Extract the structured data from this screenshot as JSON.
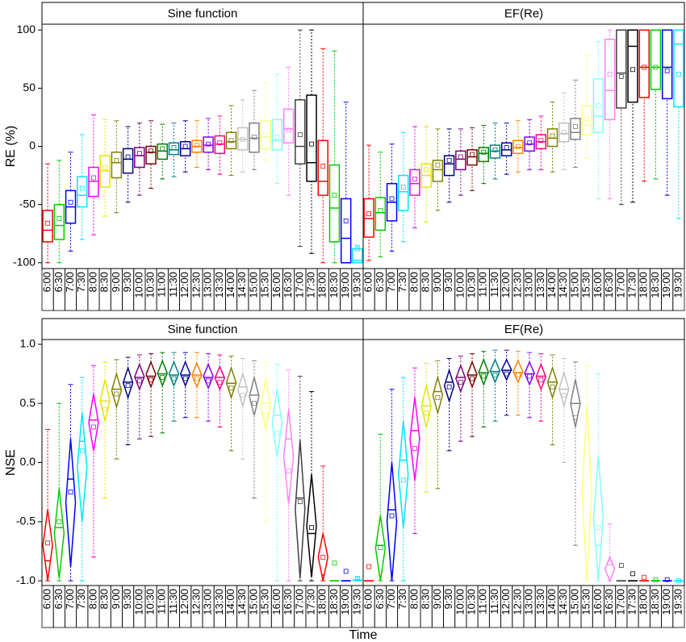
{
  "chart_data": [
    {
      "type": "box",
      "title": "Sine function",
      "ylabel": "RE (%)",
      "categories": [
        "6:00",
        "6:30",
        "7:00",
        "7:30",
        "8:00",
        "8:30",
        "9:00",
        "9:30",
        "10:00",
        "10:30",
        "11:00",
        "11:30",
        "12:00",
        "12:30",
        "13:00",
        "13:30",
        "14:00",
        "14:30",
        "15:00",
        "15:30",
        "16:00",
        "16:30",
        "17:00",
        "17:30",
        "18:00",
        "18:30",
        "19:00",
        "19:30"
      ],
      "colors": [
        "#ff0000",
        "#00cc00",
        "#0000ff",
        "#00e5ff",
        "#ff00ff",
        "#e5e500",
        "#808000",
        "#000080",
        "#800080",
        "#800000",
        "#008000",
        "#008080",
        "#0000a0",
        "#ff8000",
        "#8000ff",
        "#ff0080",
        "#808000",
        "#c0c0c0",
        "#808080",
        "#ffff80",
        "#80ffff",
        "#ff80ff",
        "#404040",
        "#000000",
        "#ff0000",
        "#00cc00",
        "#0000ff",
        "#00e5ff"
      ],
      "ylim": [
        -105,
        105
      ],
      "yticks": [
        -100,
        -50,
        0,
        50,
        100
      ],
      "whislo": [
        -100,
        -100,
        -90,
        -80,
        -76,
        -60,
        -57,
        -48,
        -42,
        -36,
        -28,
        -26,
        -22,
        -18,
        -20,
        -24,
        -25,
        -22,
        -20,
        -12,
        -32,
        -42,
        -86,
        -92,
        -100,
        -100,
        -100,
        -100
      ],
      "q1": [
        -82,
        -80,
        -66,
        -52,
        -43,
        -35,
        -27,
        -23,
        -18,
        -15,
        -11,
        -7,
        -8,
        -5,
        -5,
        -6,
        -2,
        -3,
        -5,
        -2,
        -3,
        3,
        -15,
        -30,
        -42,
        -82,
        -100,
        -100
      ],
      "median": [
        -72,
        -68,
        -52,
        -42,
        -30,
        -21,
        -14,
        -11,
        -8,
        -5,
        -4,
        -3,
        -2,
        0,
        1,
        2,
        4,
        6,
        7,
        8,
        5,
        15,
        0,
        -14,
        -30,
        -53,
        -79,
        -98
      ],
      "q3": [
        -55,
        -50,
        -38,
        -26,
        -18,
        -8,
        -5,
        -2,
        -1,
        0,
        2,
        3,
        4,
        5,
        8,
        9,
        12,
        16,
        20,
        22,
        23,
        32,
        40,
        44,
        5,
        -16,
        -45,
        -88
      ],
      "whishi": [
        -15,
        -12,
        -5,
        10,
        27,
        23,
        22,
        17,
        20,
        22,
        19,
        20,
        22,
        22,
        24,
        26,
        35,
        40,
        48,
        55,
        62,
        68,
        100,
        100,
        84,
        82,
        38,
        -85
      ],
      "mean": [
        -66,
        -62,
        -48,
        -36,
        -27,
        -18,
        -12,
        -9,
        -6,
        -4,
        -2,
        -1,
        0,
        1,
        2,
        3,
        5,
        6,
        8,
        10,
        8,
        14,
        10,
        2,
        -17,
        -42,
        -64,
        -88
      ]
    },
    {
      "type": "box",
      "title": "EF(Re)",
      "categories": [
        "6:00",
        "6:30",
        "7:00",
        "7:30",
        "8:00",
        "8:30",
        "9:00",
        "9:30",
        "10:00",
        "10:30",
        "11:00",
        "11:30",
        "12:00",
        "12:30",
        "13:00",
        "13:30",
        "14:00",
        "14:30",
        "15:00",
        "15:30",
        "16:00",
        "16:30",
        "17:00",
        "17:30",
        "18:00",
        "18:30",
        "19:00",
        "19:30"
      ],
      "colors": [
        "#ff0000",
        "#00cc00",
        "#0000ff",
        "#00e5ff",
        "#ff00ff",
        "#e5e500",
        "#808000",
        "#000080",
        "#800080",
        "#800000",
        "#008000",
        "#008080",
        "#0000a0",
        "#ff8000",
        "#8000ff",
        "#ff0080",
        "#808000",
        "#c0c0c0",
        "#808080",
        "#ffff80",
        "#80ffff",
        "#ff80ff",
        "#404040",
        "#000000",
        "#ff0000",
        "#00cc00",
        "#0000ff",
        "#00e5ff"
      ],
      "ylim": [
        -105,
        105
      ],
      "whislo": [
        -98,
        -95,
        -90,
        -82,
        -70,
        -65,
        -55,
        -48,
        -42,
        -38,
        -32,
        -28,
        -24,
        -22,
        -20,
        -20,
        -22,
        -20,
        -18,
        -10,
        -45,
        -45,
        -50,
        -48,
        -30,
        -28,
        -42,
        -62
      ],
      "q1": [
        -78,
        -72,
        -64,
        -55,
        -42,
        -35,
        -30,
        -25,
        -20,
        -16,
        -13,
        -10,
        -8,
        -6,
        -4,
        -2,
        0,
        4,
        6,
        10,
        12,
        23,
        33,
        38,
        42,
        49,
        41,
        34
      ],
      "median": [
        -62,
        -57,
        -48,
        -39,
        -32,
        -25,
        -20,
        -15,
        -11,
        -9,
        -6,
        -4,
        -3,
        -1,
        2,
        4,
        7,
        11,
        12,
        18,
        26,
        48,
        63,
        86,
        68,
        68,
        68,
        88
      ],
      "q3": [
        -45,
        -44,
        -32,
        -25,
        -20,
        -15,
        -12,
        -8,
        -4,
        -3,
        -1,
        1,
        3,
        5,
        8,
        10,
        15,
        20,
        24,
        35,
        58,
        92,
        100,
        100,
        100,
        100,
        100,
        100
      ],
      "whishi": [
        1,
        -5,
        2,
        12,
        17,
        17,
        15,
        15,
        15,
        16,
        18,
        20,
        20,
        22,
        23,
        26,
        38,
        46,
        57,
        78,
        90,
        100,
        100,
        100,
        100,
        100,
        100,
        100
      ],
      "mean": [
        -58,
        -55,
        -45,
        -35,
        -28,
        -20,
        -16,
        -12,
        -9,
        -7,
        -5,
        -3,
        -1,
        0,
        3,
        5,
        9,
        12,
        17,
        24,
        35,
        62,
        60,
        66,
        68,
        68,
        65,
        62
      ]
    },
    {
      "type": "diamond",
      "title": "Sine function",
      "ylabel": "NSE",
      "categories": [
        "6:00",
        "6:30",
        "7:00",
        "7:30",
        "8:00",
        "8:30",
        "9:00",
        "9:30",
        "10:00",
        "10:30",
        "11:00",
        "11:30",
        "12:00",
        "12:30",
        "13:00",
        "13:30",
        "14:00",
        "14:30",
        "15:00",
        "15:30",
        "16:00",
        "16:30",
        "17:00",
        "17:30",
        "18:00",
        "18:30",
        "19:00",
        "19:30"
      ],
      "colors": [
        "#ff0000",
        "#00cc00",
        "#0000ff",
        "#00e5ff",
        "#ff00ff",
        "#e5e500",
        "#808000",
        "#000080",
        "#800080",
        "#800000",
        "#008000",
        "#008080",
        "#0000a0",
        "#ff8000",
        "#8000ff",
        "#ff0080",
        "#808000",
        "#c0c0c0",
        "#808080",
        "#ffff80",
        "#80ffff",
        "#ff80ff",
        "#404040",
        "#000000",
        "#ff0000",
        "#00cc00",
        "#0000ff",
        "#00e5ff"
      ],
      "ylim": [
        -1.04,
        1.04
      ],
      "yticks": [
        {
          "value": -1,
          "label": "-1.0"
        },
        -0.5,
        {
          "value": 0,
          "label": "0.0"
        },
        0.5,
        {
          "value": 1,
          "label": "1.0"
        }
      ],
      "whislo": [
        -1,
        -1,
        -1,
        -1,
        -0.8,
        -0.3,
        0.03,
        0.15,
        0.2,
        0.22,
        0.25,
        0.35,
        0.38,
        0.38,
        0.35,
        0.3,
        0.1,
        0.03,
        -0.3,
        -0.5,
        -1,
        -1,
        -1,
        -1,
        -1,
        -1,
        -1,
        -1
      ],
      "q1": [
        -1,
        -0.98,
        -0.88,
        -0.5,
        0.1,
        0.35,
        0.47,
        0.55,
        0.62,
        0.64,
        0.65,
        0.65,
        0.65,
        0.64,
        0.63,
        0.62,
        0.55,
        0.48,
        0.4,
        0.28,
        0.05,
        -0.35,
        -0.98,
        -0.97,
        -1,
        -1,
        -1,
        -1
      ],
      "median": [
        -0.83,
        -0.55,
        -0.14,
        0.18,
        0.36,
        0.52,
        0.62,
        0.68,
        0.72,
        0.73,
        0.75,
        0.74,
        0.74,
        0.74,
        0.72,
        0.72,
        0.67,
        0.64,
        0.57,
        0.5,
        0.4,
        0.2,
        -0.3,
        -0.6,
        -0.95,
        -1,
        -1,
        -1
      ],
      "q3": [
        -0.4,
        -0.22,
        0.2,
        0.42,
        0.58,
        0.7,
        0.75,
        0.8,
        0.83,
        0.85,
        0.86,
        0.85,
        0.85,
        0.84,
        0.83,
        0.81,
        0.8,
        0.75,
        0.72,
        0.7,
        0.62,
        0.45,
        0.19,
        -0.1,
        -0.6,
        -1,
        -1,
        -0.99
      ],
      "whishi": [
        0.28,
        0.5,
        0.66,
        0.72,
        0.82,
        0.85,
        0.87,
        0.89,
        0.91,
        0.92,
        0.93,
        0.93,
        0.93,
        0.93,
        0.92,
        0.91,
        0.9,
        0.88,
        0.86,
        0.85,
        0.83,
        0.78,
        0.73,
        0.6,
        -0.03,
        -1,
        -1,
        -0.97
      ],
      "mean": [
        -0.68,
        -0.5,
        -0.25,
        0.1,
        0.3,
        0.45,
        0.58,
        0.65,
        0.69,
        0.7,
        0.72,
        0.71,
        0.71,
        0.71,
        0.69,
        0.68,
        0.63,
        0.57,
        0.5,
        0.4,
        0.25,
        -0.07,
        -0.33,
        -0.55,
        -0.8,
        -0.85,
        -0.92,
        -0.98
      ]
    },
    {
      "type": "diamond",
      "title": "EF(Re)",
      "xlabel": "Time",
      "categories": [
        "6:00",
        "6:30",
        "7:00",
        "7:30",
        "8:00",
        "8:30",
        "9:00",
        "9:30",
        "10:00",
        "10:30",
        "11:00",
        "11:30",
        "12:00",
        "12:30",
        "13:00",
        "13:30",
        "14:00",
        "14:30",
        "15:00",
        "15:30",
        "16:00",
        "16:30",
        "17:00",
        "17:30",
        "18:00",
        "18:30",
        "19:00",
        "19:30"
      ],
      "colors": [
        "#ff0000",
        "#00cc00",
        "#0000ff",
        "#00e5ff",
        "#ff00ff",
        "#e5e500",
        "#808000",
        "#000080",
        "#800080",
        "#800000",
        "#008000",
        "#008080",
        "#0000a0",
        "#ff8000",
        "#8000ff",
        "#ff0080",
        "#808000",
        "#c0c0c0",
        "#808080",
        "#ffff80",
        "#80ffff",
        "#ff80ff",
        "#404040",
        "#000000",
        "#ff0000",
        "#00cc00",
        "#0000ff",
        "#00e5ff"
      ],
      "ylim": [
        -1.04,
        1.04
      ],
      "whislo": [
        -1,
        -1,
        -1,
        -1,
        -0.6,
        -0.25,
        -0.22,
        0.1,
        0.18,
        0.22,
        0.3,
        0.35,
        0.4,
        0.4,
        0.38,
        0.35,
        0.15,
        0,
        -0.7,
        -1,
        -1,
        -1,
        -1,
        -1,
        -1,
        -1,
        -1,
        -1
      ],
      "q1": [
        -1,
        -1,
        -1,
        -0.55,
        -0.15,
        0.3,
        0.42,
        0.52,
        0.6,
        0.64,
        0.66,
        0.68,
        0.7,
        0.68,
        0.66,
        0.62,
        0.55,
        0.48,
        0.3,
        -1,
        -1,
        -1,
        -1,
        -1,
        -1,
        -1,
        -1,
        -1
      ],
      "median": [
        -1,
        -0.7,
        -0.4,
        0.02,
        0.27,
        0.48,
        0.6,
        0.68,
        0.72,
        0.74,
        0.76,
        0.77,
        0.78,
        0.76,
        0.75,
        0.73,
        0.68,
        0.62,
        0.5,
        0.25,
        -0.7,
        -1,
        -1,
        -1,
        -1,
        -1,
        -1,
        -1
      ],
      "q3": [
        -1,
        -0.45,
        0,
        0.35,
        0.55,
        0.65,
        0.72,
        0.78,
        0.82,
        0.85,
        0.87,
        0.87,
        0.87,
        0.86,
        0.85,
        0.83,
        0.8,
        0.76,
        0.7,
        0.48,
        0.05,
        -0.8,
        -1,
        -1,
        -1,
        -1,
        -1,
        -1
      ],
      "whishi": [
        -1,
        0.24,
        0.62,
        0.72,
        0.8,
        0.84,
        0.86,
        0.88,
        0.9,
        0.92,
        0.94,
        0.95,
        0.95,
        0.94,
        0.93,
        0.92,
        0.91,
        0.88,
        0.85,
        0.82,
        0.75,
        -0.52,
        -1,
        -1,
        -1,
        -1,
        -1,
        -1
      ],
      "mean": [
        -0.88,
        -0.72,
        -0.45,
        -0.15,
        0.12,
        0.42,
        0.55,
        0.64,
        0.68,
        0.71,
        0.73,
        0.74,
        0.75,
        0.74,
        0.73,
        0.7,
        0.64,
        0.57,
        0.38,
        0.2,
        -0.55,
        -0.85,
        -0.87,
        -0.94,
        -0.97,
        -0.99,
        -0.99,
        -1
      ]
    }
  ]
}
